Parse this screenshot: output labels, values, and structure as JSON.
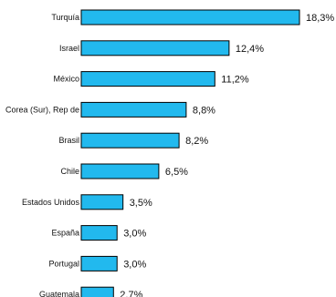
{
  "chart_data": {
    "type": "bar",
    "orientation": "horizontal",
    "categories": [
      "Turquía",
      "Israel",
      "México",
      "Corea (Sur), Rep de",
      "Brasil",
      "Chile",
      "Estados Unidos",
      "España",
      "Portugal",
      "Guatemala"
    ],
    "values": [
      18.3,
      12.4,
      11.2,
      8.8,
      8.2,
      6.5,
      3.5,
      3.0,
      3.0,
      2.7
    ],
    "value_labels": [
      "18,3%",
      "12,4%",
      "11,2%",
      "8,8%",
      "8,2%",
      "6,5%",
      "3,5%",
      "3,0%",
      "3,0%",
      "2,7%"
    ],
    "title": "",
    "xlabel": "",
    "ylabel": "",
    "xlim": [
      0,
      18.3
    ],
    "grid": false,
    "legend": "none",
    "colors": {
      "bar_fill": "#22b9ee",
      "bar_stroke": "#000000"
    }
  }
}
